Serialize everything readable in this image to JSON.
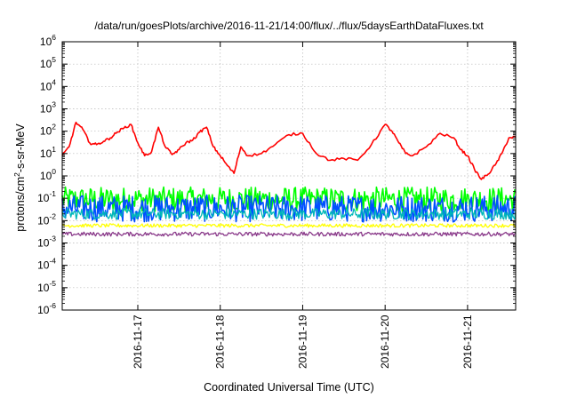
{
  "chart_data": {
    "type": "line",
    "title": "/data/run/goesPlots/archive/2016-11-21/14:00/flux/../flux/5daysEarthDataFluxes.txt",
    "xlabel": "Coordinated Universal Time (UTC)",
    "ylabel_base": "protons/cm",
    "ylabel_sup": "2",
    "ylabel_rest": "-s-sr-MeV",
    "y_scale": "log",
    "ylim": [
      1e-06,
      1000000.0
    ],
    "y_ticks": [
      {
        "base": "10",
        "exp": "6",
        "value": 1000000.0
      },
      {
        "base": "10",
        "exp": "5",
        "value": 100000.0
      },
      {
        "base": "10",
        "exp": "4",
        "value": 10000.0
      },
      {
        "base": "10",
        "exp": "3",
        "value": 1000.0
      },
      {
        "base": "10",
        "exp": "2",
        "value": 100.0
      },
      {
        "base": "10",
        "exp": "1",
        "value": 10.0
      },
      {
        "base": "10",
        "exp": "0",
        "value": 1.0
      },
      {
        "base": "10",
        "exp": "-1",
        "value": 0.1
      },
      {
        "base": "10",
        "exp": "-2",
        "value": 0.01
      },
      {
        "base": "10",
        "exp": "-3",
        "value": 0.001
      },
      {
        "base": "10",
        "exp": "-4",
        "value": 0.0001
      },
      {
        "base": "10",
        "exp": "-5",
        "value": 1e-05
      },
      {
        "base": "10",
        "exp": "-6",
        "value": 1e-06
      }
    ],
    "xlim": [
      "2016-11-16T02:00",
      "2016-11-21T14:00"
    ],
    "x_ticks": [
      "2016-11-17",
      "2016-11-18",
      "2016-11-19",
      "2016-11-20",
      "2016-11-21"
    ],
    "grid": true,
    "series": [
      {
        "color": "#ff0000",
        "x": [
          "2016-11-16T02:00",
          "2016-11-16T04:00",
          "2016-11-16T06:00",
          "2016-11-16T08:00",
          "2016-11-16T10:00",
          "2016-11-16T12:00",
          "2016-11-16T14:00",
          "2016-11-16T16:00",
          "2016-11-16T18:00",
          "2016-11-16T20:00",
          "2016-11-16T22:00",
          "2016-11-17T00:00",
          "2016-11-17T02:00",
          "2016-11-17T04:00",
          "2016-11-17T06:00",
          "2016-11-17T08:00",
          "2016-11-17T10:00",
          "2016-11-17T12:00",
          "2016-11-17T14:00",
          "2016-11-17T16:00",
          "2016-11-17T18:00",
          "2016-11-17T20:00",
          "2016-11-17T22:00",
          "2016-11-18T00:00",
          "2016-11-18T02:00",
          "2016-11-18T04:00",
          "2016-11-18T06:00",
          "2016-11-18T08:00",
          "2016-11-18T12:00",
          "2016-11-18T16:00",
          "2016-11-18T20:00",
          "2016-11-19T00:00",
          "2016-11-19T04:00",
          "2016-11-19T08:00",
          "2016-11-19T12:00",
          "2016-11-19T16:00",
          "2016-11-19T20:00",
          "2016-11-20T00:00",
          "2016-11-20T02:00",
          "2016-11-20T04:00",
          "2016-11-20T06:00",
          "2016-11-20T08:00",
          "2016-11-20T12:00",
          "2016-11-20T16:00",
          "2016-11-20T20:00",
          "2016-11-20T22:00",
          "2016-11-21T00:00",
          "2016-11-21T02:00",
          "2016-11-21T04:00",
          "2016-11-21T06:00",
          "2016-11-21T08:00",
          "2016-11-21T10:00",
          "2016-11-21T12:00",
          "2016-11-21T14:00"
        ],
        "values": [
          8,
          20,
          250,
          120,
          30,
          25,
          35,
          50,
          90,
          140,
          200,
          30,
          8,
          12,
          150,
          20,
          9,
          15,
          30,
          40,
          90,
          150,
          20,
          8,
          3,
          1.3,
          20,
          8,
          10,
          25,
          70,
          80,
          10,
          5,
          6,
          5,
          25,
          200,
          100,
          30,
          10,
          8,
          20,
          80,
          50,
          15,
          8,
          2,
          0.7,
          1.2,
          3,
          10,
          50,
          55
        ]
      },
      {
        "color": "#00ff00",
        "level": 0.09,
        "spread": 0.55
      },
      {
        "color": "#0050ff",
        "level": 0.035,
        "spread": 0.6
      },
      {
        "color": "#00b8b8",
        "level": 0.02,
        "spread": 0.25
      },
      {
        "color": "#ffff00",
        "level": 0.006,
        "spread": 0.08
      },
      {
        "color": "#8a3a8a",
        "level": 0.0025,
        "spread": 0.09
      }
    ]
  }
}
